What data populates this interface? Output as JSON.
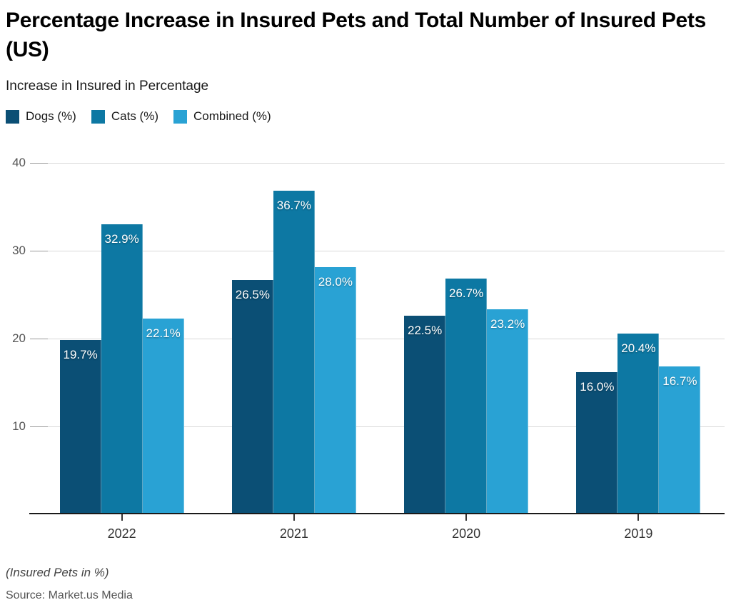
{
  "header": {
    "title": "Percentage Increase in Insured Pets and Total Number of Insured Pets (US)",
    "subtitle": "Increase in Insured in Percentage"
  },
  "footer": {
    "note": "(Insured Pets in %)",
    "source": "Source: Market.us Media"
  },
  "chart_data": {
    "type": "bar",
    "title": "Percentage Increase in Insured Pets and Total Number of Insured Pets (US)",
    "subtitle": "Increase in Insured in Percentage",
    "categories": [
      "2022",
      "2021",
      "2020",
      "2019"
    ],
    "series": [
      {
        "name": "Dogs (%)",
        "color": "#0b4f75",
        "values": [
          19.7,
          26.5,
          22.5,
          16.0
        ],
        "labels": [
          "19.7%",
          "26.5%",
          "22.5%",
          "16.0%"
        ]
      },
      {
        "name": "Cats (%)",
        "color": "#0d78a3",
        "values": [
          32.9,
          36.7,
          26.7,
          20.4
        ],
        "labels": [
          "32.9%",
          "36.7%",
          "26.7%",
          "20.4%"
        ]
      },
      {
        "name": "Combined (%)",
        "color": "#29a2d4",
        "values": [
          22.1,
          28.0,
          23.2,
          16.7
        ],
        "labels": [
          "22.1%",
          "28.0%",
          "23.2%",
          "16.7%"
        ]
      }
    ],
    "yticks": [
      10,
      20,
      30,
      40
    ],
    "ylim": [
      0,
      41.5
    ],
    "grid": true,
    "legend_position": "top-left",
    "bar_label_color": "#ffffff",
    "axis_colors": {
      "grid": "#d9d9d9",
      "tick_segment": "#999999",
      "baseline": "#1a1a1a",
      "ytick_label": "#555555",
      "xtick_label": "#333333"
    }
  }
}
